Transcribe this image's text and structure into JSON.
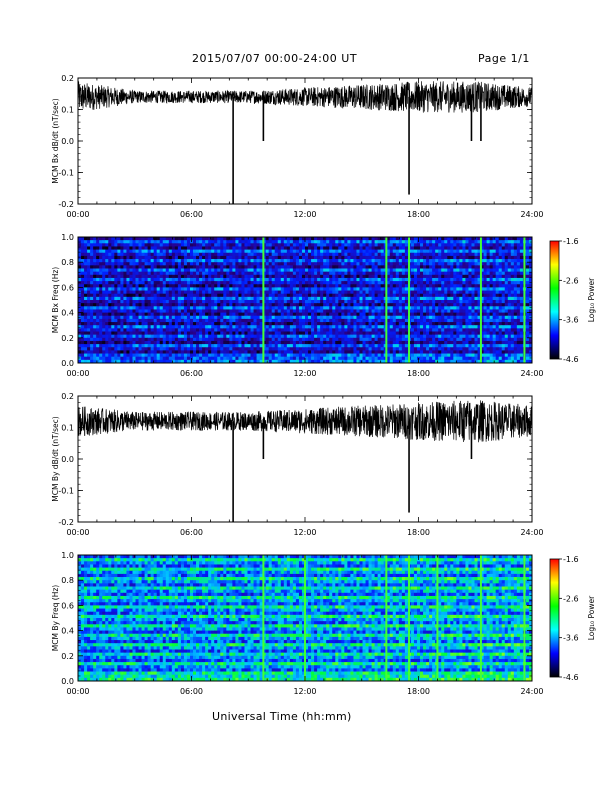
{
  "header": {
    "title": "2015/07/07  00:00-24:00 UT",
    "page": "Page 1/1"
  },
  "footer": {
    "xlabel": "Universal Time (hh:mm)"
  },
  "colorbar": {
    "label": "Log₁₀ Power",
    "ticks": [
      "-1.6",
      "-2.6",
      "-3.6",
      "-4.6"
    ],
    "colors": [
      "#ff0000",
      "#ffff00",
      "#00ff00",
      "#00ffff",
      "#0000ff",
      "#000000"
    ]
  },
  "chart_data": [
    {
      "type": "line",
      "title": "",
      "ylabel": "MCM Bx dB/dt (nT/sec)",
      "xlabel": "",
      "x_ticks": [
        "00:00",
        "06:00",
        "12:00",
        "18:00",
        "24:00"
      ],
      "y_ticks": [
        "0.2",
        "0.1",
        "0.0",
        "-0.1",
        "-0.2"
      ],
      "xlim": [
        0,
        24
      ],
      "ylim": [
        -0.2,
        0.2
      ],
      "baseline": 0.14,
      "noise_envelope": [
        [
          0,
          0.05
        ],
        [
          3,
          0.02
        ],
        [
          6,
          0.02
        ],
        [
          9,
          0.02
        ],
        [
          12,
          0.03
        ],
        [
          15,
          0.04
        ],
        [
          18,
          0.05
        ],
        [
          21,
          0.05
        ],
        [
          24,
          0.03
        ]
      ],
      "spikes": [
        {
          "t": 8.2,
          "y": -0.2
        },
        {
          "t": 9.8,
          "y": 0.0
        },
        {
          "t": 17.5,
          "y": -0.17
        },
        {
          "t": 20.8,
          "y": 0.0
        },
        {
          "t": 21.3,
          "y": 0.0
        }
      ]
    },
    {
      "type": "heatmap",
      "title": "",
      "ylabel": "MCM Bx Freq (Hz)",
      "xlabel": "",
      "x_ticks": [
        "00:00",
        "06:00",
        "12:00",
        "18:00",
        "24:00"
      ],
      "y_ticks": [
        "1.0",
        "0.8",
        "0.6",
        "0.4",
        "0.2",
        "0.0"
      ],
      "xlim": [
        0,
        24
      ],
      "ylim": [
        0,
        1.0
      ],
      "zlim": [
        -4.6,
        -1.6
      ],
      "background_level": -3.9,
      "vertical_bursts": [
        9.8,
        16.3,
        17.5,
        21.3,
        23.6
      ]
    },
    {
      "type": "line",
      "title": "",
      "ylabel": "MCM By dB/dt (nT/sec)",
      "xlabel": "",
      "x_ticks": [
        "00:00",
        "06:00",
        "12:00",
        "18:00",
        "24:00"
      ],
      "y_ticks": [
        "0.2",
        "0.1",
        "0.0",
        "-0.1",
        "-0.2"
      ],
      "xlim": [
        0,
        24
      ],
      "ylim": [
        -0.2,
        0.2
      ],
      "baseline": 0.12,
      "noise_envelope": [
        [
          0,
          0.05
        ],
        [
          3,
          0.03
        ],
        [
          6,
          0.03
        ],
        [
          9,
          0.03
        ],
        [
          12,
          0.04
        ],
        [
          15,
          0.05
        ],
        [
          18,
          0.06
        ],
        [
          21,
          0.07
        ],
        [
          24,
          0.05
        ]
      ],
      "spikes": [
        {
          "t": 8.2,
          "y": -0.2
        },
        {
          "t": 9.8,
          "y": 0.0
        },
        {
          "t": 17.5,
          "y": -0.17
        },
        {
          "t": 20.8,
          "y": 0.0
        }
      ]
    },
    {
      "type": "heatmap",
      "title": "",
      "ylabel": "MCM By Freq (Hz)",
      "xlabel": "",
      "x_ticks": [
        "00:00",
        "06:00",
        "12:00",
        "18:00",
        "24:00"
      ],
      "y_ticks": [
        "1.0",
        "0.8",
        "0.6",
        "0.4",
        "0.2",
        "0.0"
      ],
      "xlim": [
        0,
        24
      ],
      "ylim": [
        0,
        1.0
      ],
      "zlim": [
        -4.6,
        -1.6
      ],
      "background_level": -3.3,
      "vertical_bursts": [
        9.8,
        12.0,
        16.3,
        17.5,
        19.0,
        21.3,
        23.6
      ]
    }
  ]
}
